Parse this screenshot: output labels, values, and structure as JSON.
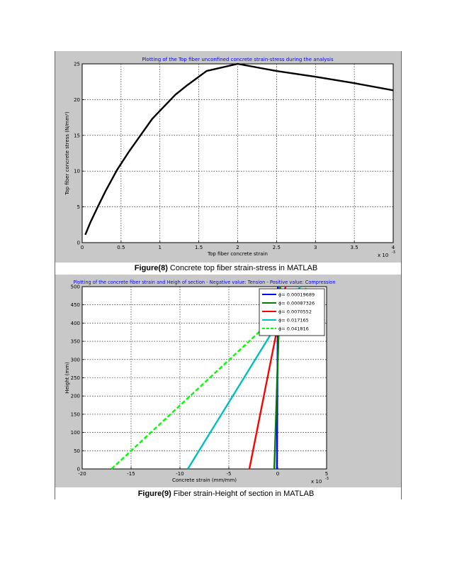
{
  "figure8": {
    "caption_label": "Figure(8)",
    "caption_text": " Concrete top fiber strain-stress in MATLAB"
  },
  "figure9": {
    "caption_label": "Figure(9)",
    "caption_text": " Fiber strain-Height of section in MATLAB"
  },
  "chart_data": [
    {
      "type": "line",
      "title": "Plotting of the Top fiber unconfined concrete strain-stress during the analysis",
      "xlabel": "Top fiber concrete strain",
      "ylabel": "Top fiber concrete stress (N/mm²)",
      "x_exponent_label": "x 10",
      "x_exponent_power": "-3",
      "xlim": [
        0,
        4
      ],
      "ylim": [
        0,
        25
      ],
      "xticks": [
        "0",
        "0.5",
        "1",
        "1.5",
        "2",
        "2.5",
        "3",
        "3.5",
        "4"
      ],
      "yticks": [
        "0",
        "5",
        "10",
        "15",
        "20",
        "25"
      ],
      "grid": true,
      "series": [
        {
          "color": "#000000",
          "x": [
            0.04,
            0.1,
            0.2,
            0.3,
            0.45,
            0.6,
            0.75,
            0.9,
            1.05,
            1.2,
            1.35,
            1.6,
            2.0,
            2.5,
            3.0,
            3.5,
            4.0
          ],
          "y": [
            1.1,
            2.7,
            5.0,
            7.2,
            10.2,
            12.7,
            15.0,
            17.3,
            19.0,
            20.7,
            22.0,
            24.0,
            25.0,
            24.0,
            23.2,
            22.3,
            21.3
          ]
        }
      ]
    },
    {
      "type": "line",
      "title": "Plotting of the concrete fiber strain and Heigh of section - Negative value: Tension - Positive value: Compression",
      "xlabel": "Concrete strain (mm/mm)",
      "ylabel": "Height (mm)",
      "x_exponent_label": "x 10",
      "x_exponent_power": "-3",
      "xlim": [
        -20,
        5
      ],
      "ylim": [
        0,
        500
      ],
      "xticks": [
        "-20",
        "-15",
        "-10",
        "-5",
        "0",
        "5"
      ],
      "yticks": [
        "0",
        "50",
        "100",
        "150",
        "200",
        "250",
        "300",
        "350",
        "400",
        "450",
        "500"
      ],
      "grid": true,
      "legend_position": "top-right",
      "series": [
        {
          "name": "ϕ= 0.00019689",
          "color": "#0000ff",
          "dash": false,
          "x": [
            -0.08,
            0.02
          ],
          "y": [
            0,
            500
          ]
        },
        {
          "name": "ϕ= 0.00087326",
          "color": "#008000",
          "dash": false,
          "x": [
            -0.35,
            0.25
          ],
          "y": [
            0,
            500
          ]
        },
        {
          "name": "ϕ= 0.0070552",
          "color": "#ff0000",
          "dash": false,
          "x": [
            -2.9,
            0.8
          ],
          "y": [
            0,
            500
          ]
        },
        {
          "name": "ϕ= 0.017165",
          "color": "#00bfbf",
          "dash": false,
          "x": [
            -9.2,
            2.3
          ],
          "y": [
            0,
            500
          ]
        },
        {
          "name": "ϕ= 0.041816",
          "color": "#00ff00",
          "dash": true,
          "x": [
            -17.0,
            3.1
          ],
          "y": [
            0,
            500
          ]
        }
      ]
    }
  ]
}
